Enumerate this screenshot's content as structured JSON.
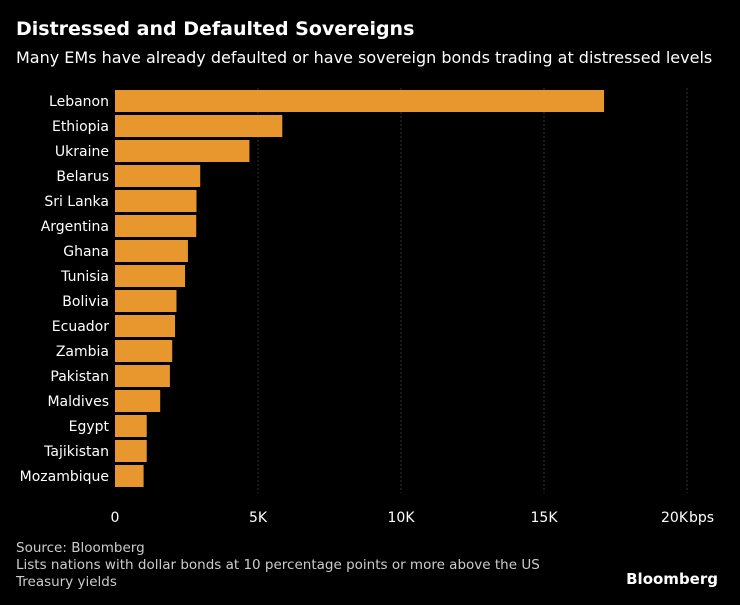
{
  "header": {
    "title": "Distressed and Defaulted Sovereigns",
    "subtitle": "Many EMs have already defaulted or have sovereign bonds trading at distressed levels"
  },
  "footer": {
    "source": "Source: Bloomberg",
    "note_line1": "Lists nations with dollar bonds at 10 percentage points or more above the US",
    "note_line2": "Treasury yields",
    "brand": "Bloomberg"
  },
  "colors": {
    "bar": "#e8962e",
    "background": "#000000",
    "grid": "#333333",
    "text": "#ffffff"
  },
  "chart_data": {
    "type": "bar",
    "orientation": "horizontal",
    "title": "Distressed and Defaulted Sovereigns",
    "xlabel": "",
    "ylabel": "",
    "unit": "bps",
    "categories": [
      "Lebanon",
      "Ethiopia",
      "Ukraine",
      "Belarus",
      "Sri Lanka",
      "Argentina",
      "Ghana",
      "Tunisia",
      "Bolivia",
      "Ecuador",
      "Zambia",
      "Pakistan",
      "Maldives",
      "Egypt",
      "Tajikistan",
      "Mozambique"
    ],
    "values": [
      17100,
      5850,
      4700,
      2980,
      2850,
      2840,
      2550,
      2450,
      2150,
      2100,
      2000,
      1920,
      1580,
      1110,
      1110,
      1000
    ],
    "xlim": [
      0,
      20000
    ],
    "ticks": [
      {
        "value": 0,
        "label": "0"
      },
      {
        "value": 5000,
        "label": "5K"
      },
      {
        "value": 10000,
        "label": "10K"
      },
      {
        "value": 15000,
        "label": "15K"
      },
      {
        "value": 20000,
        "label": "20K"
      }
    ],
    "grid": true
  }
}
